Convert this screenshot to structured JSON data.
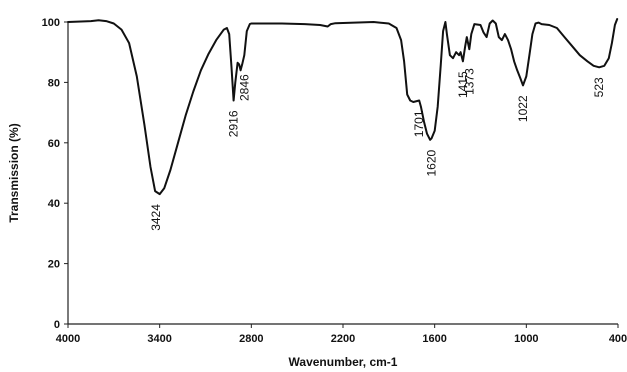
{
  "chart_data": {
    "type": "line",
    "title": "",
    "xlabel": "Wavenumber, cm-1",
    "ylabel": "Transmission (%)",
    "xlim": [
      4000,
      400
    ],
    "ylim": [
      0,
      100
    ],
    "x_reversed": true,
    "grid": false,
    "legend": "none",
    "x_ticks": [
      4000,
      3400,
      2800,
      2200,
      1600,
      1000,
      400
    ],
    "y_ticks": [
      0,
      20,
      40,
      60,
      80,
      100
    ],
    "series": [
      {
        "points": [
          [
            4000,
            100
          ],
          [
            3850,
            100.3
          ],
          [
            3800,
            100.6
          ],
          [
            3750,
            100.3
          ],
          [
            3700,
            99.5
          ],
          [
            3650,
            97.5
          ],
          [
            3600,
            93
          ],
          [
            3550,
            82
          ],
          [
            3500,
            66
          ],
          [
            3460,
            52
          ],
          [
            3430,
            44
          ],
          [
            3400,
            43
          ],
          [
            3370,
            45
          ],
          [
            3330,
            51
          ],
          [
            3280,
            60
          ],
          [
            3230,
            69
          ],
          [
            3180,
            77
          ],
          [
            3130,
            84
          ],
          [
            3080,
            89.5
          ],
          [
            3030,
            94
          ],
          [
            2980,
            97.5
          ],
          [
            2960,
            98
          ],
          [
            2945,
            96
          ],
          [
            2930,
            85
          ],
          [
            2916,
            74
          ],
          [
            2905,
            80
          ],
          [
            2890,
            86.5
          ],
          [
            2880,
            86
          ],
          [
            2870,
            84
          ],
          [
            2860,
            86
          ],
          [
            2846,
            89
          ],
          [
            2830,
            97
          ],
          [
            2810,
            99.3
          ],
          [
            2800,
            99.5
          ],
          [
            2600,
            99.5
          ],
          [
            2450,
            99.3
          ],
          [
            2350,
            99
          ],
          [
            2300,
            98.5
          ],
          [
            2280,
            99.3
          ],
          [
            2250,
            99.6
          ],
          [
            2000,
            100
          ],
          [
            1900,
            99.5
          ],
          [
            1850,
            98
          ],
          [
            1820,
            94
          ],
          [
            1800,
            87
          ],
          [
            1780,
            76
          ],
          [
            1760,
            74
          ],
          [
            1740,
            73.5
          ],
          [
            1701,
            74
          ],
          [
            1690,
            72
          ],
          [
            1670,
            67
          ],
          [
            1650,
            63
          ],
          [
            1630,
            61
          ],
          [
            1620,
            61.5
          ],
          [
            1600,
            64
          ],
          [
            1580,
            72
          ],
          [
            1560,
            86
          ],
          [
            1545,
            97
          ],
          [
            1530,
            100
          ],
          [
            1520,
            96
          ],
          [
            1500,
            89
          ],
          [
            1480,
            88
          ],
          [
            1460,
            90
          ],
          [
            1440,
            89
          ],
          [
            1430,
            90
          ],
          [
            1415,
            87
          ],
          [
            1400,
            92
          ],
          [
            1390,
            95
          ],
          [
            1373,
            91
          ],
          [
            1360,
            96
          ],
          [
            1340,
            99.3
          ],
          [
            1300,
            99
          ],
          [
            1280,
            96.5
          ],
          [
            1260,
            95
          ],
          [
            1240,
            99.5
          ],
          [
            1220,
            100.5
          ],
          [
            1200,
            99.5
          ],
          [
            1180,
            95
          ],
          [
            1160,
            94
          ],
          [
            1140,
            96
          ],
          [
            1120,
            94
          ],
          [
            1100,
            91
          ],
          [
            1080,
            87
          ],
          [
            1060,
            84
          ],
          [
            1040,
            81.5
          ],
          [
            1022,
            79
          ],
          [
            1000,
            82
          ],
          [
            980,
            89
          ],
          [
            960,
            96
          ],
          [
            940,
            99.5
          ],
          [
            920,
            99.8
          ],
          [
            900,
            99.3
          ],
          [
            850,
            99
          ],
          [
            800,
            98
          ],
          [
            750,
            95
          ],
          [
            700,
            92
          ],
          [
            650,
            89
          ],
          [
            600,
            87
          ],
          [
            560,
            85.5
          ],
          [
            523,
            85
          ],
          [
            490,
            85.5
          ],
          [
            460,
            88
          ],
          [
            440,
            93
          ],
          [
            430,
            96
          ],
          [
            420,
            99
          ],
          [
            405,
            101
          ]
        ]
      }
    ],
    "annotations": [
      {
        "label": "3424",
        "x": 3424,
        "y": 43
      },
      {
        "label": "2916",
        "x": 2916,
        "y": 74
      },
      {
        "label": "2846",
        "x": 2846,
        "y": 86
      },
      {
        "label": "1701",
        "x": 1701,
        "y": 74
      },
      {
        "label": "1620",
        "x": 1620,
        "y": 61
      },
      {
        "label": "1415",
        "x": 1415,
        "y": 87
      },
      {
        "label": "1373",
        "x": 1373,
        "y": 88
      },
      {
        "label": "1022",
        "x": 1022,
        "y": 79
      },
      {
        "label": "523",
        "x": 523,
        "y": 85
      }
    ]
  }
}
